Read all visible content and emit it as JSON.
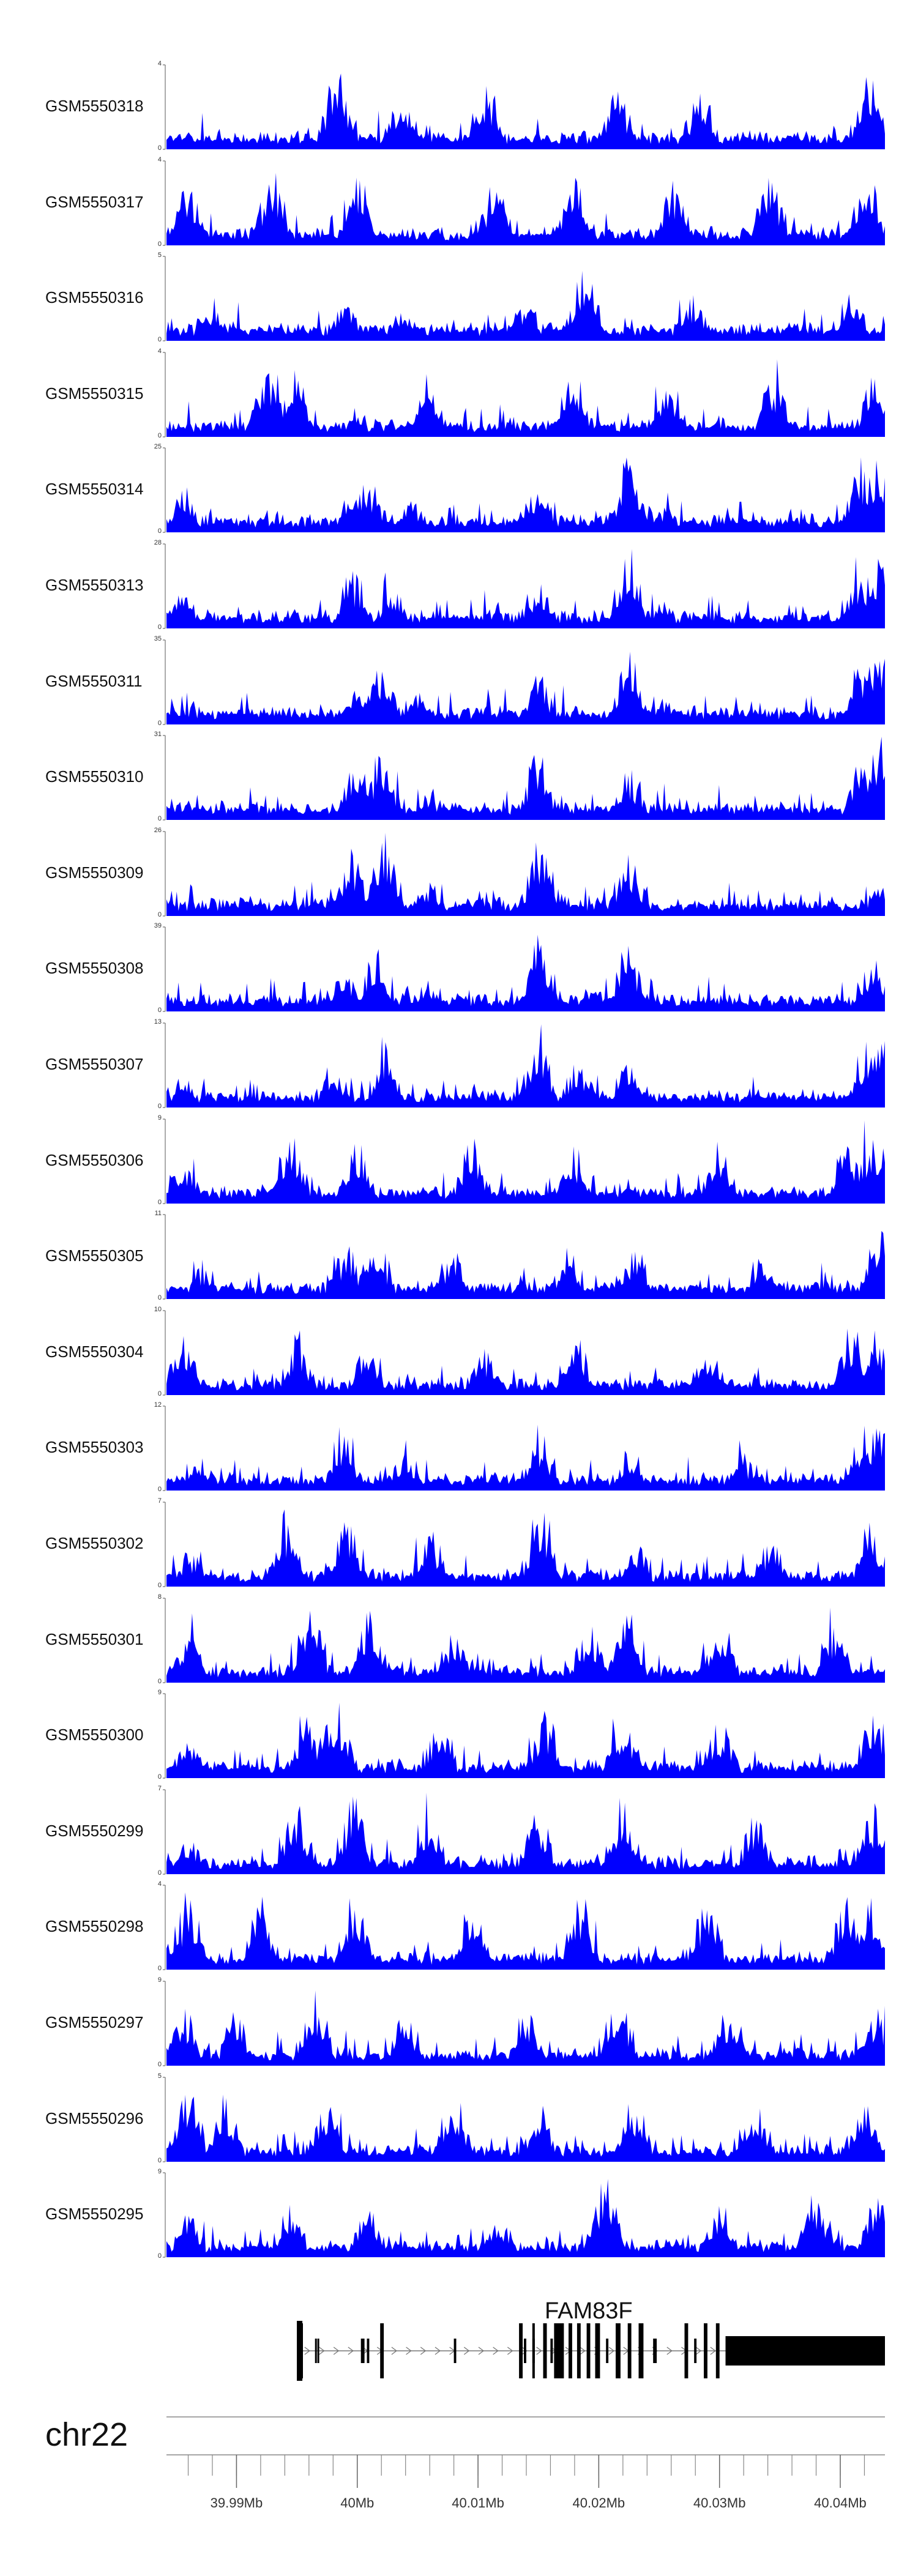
{
  "colors": {
    "signal": "#0000ff",
    "gene": "#000000",
    "axis": "#888888"
  },
  "chart_data": {
    "type": "area",
    "title": "",
    "xlabel": "",
    "x_range_mb": [
      39.9842,
      40.0437
    ],
    "tracks": [
      {
        "name": "GSM5550318",
        "ymin": "0",
        "ymax": "4",
        "peaks": [
          [
            39.9983,
            3.9
          ],
          [
            40.0038,
            2.6
          ],
          [
            40.0105,
            3.2
          ],
          [
            40.0215,
            3.0
          ],
          [
            40.0285,
            2.8
          ],
          [
            40.0425,
            3.4
          ]
        ]
      },
      {
        "name": "GSM5550317",
        "ymin": "0",
        "ymax": "4",
        "peaks": [
          [
            39.986,
            3.3
          ],
          [
            39.993,
            3.6
          ],
          [
            40.0,
            3.8
          ],
          [
            40.0115,
            3.4
          ],
          [
            40.018,
            3.5
          ],
          [
            40.0262,
            3.3
          ],
          [
            40.0342,
            3.4
          ],
          [
            40.0423,
            3.6
          ]
        ]
      },
      {
        "name": "GSM5550316",
        "ymin": "0",
        "ymax": "5",
        "peaks": [
          [
            39.988,
            2.2
          ],
          [
            39.999,
            2.6
          ],
          [
            40.004,
            2.3
          ],
          [
            40.014,
            2.5
          ],
          [
            40.0188,
            4.8
          ],
          [
            40.0278,
            2.6
          ],
          [
            40.041,
            2.8
          ]
        ]
      },
      {
        "name": "GSM5550315",
        "ymin": "0",
        "ymax": "4",
        "peaks": [
          [
            39.9925,
            3.9
          ],
          [
            39.9948,
            3.5
          ],
          [
            40.0058,
            3.4
          ],
          [
            40.0178,
            3.6
          ],
          [
            40.0258,
            3.0
          ],
          [
            40.0345,
            3.0
          ],
          [
            40.0428,
            3.3
          ]
        ]
      },
      {
        "name": "GSM5550314",
        "ymin": "0",
        "ymax": "25",
        "peaks": [
          [
            39.9855,
            12
          ],
          [
            39.9995,
            14
          ],
          [
            40.001,
            15
          ],
          [
            40.0045,
            10
          ],
          [
            40.015,
            13
          ],
          [
            40.0225,
            23
          ],
          [
            40.0252,
            8
          ],
          [
            40.0418,
            22
          ],
          [
            40.043,
            24
          ]
        ]
      },
      {
        "name": "GSM5550313",
        "ymin": "0",
        "ymax": "28",
        "peaks": [
          [
            39.9855,
            13
          ],
          [
            39.9995,
            20
          ],
          [
            40.003,
            15
          ],
          [
            40.015,
            16
          ],
          [
            40.0225,
            27
          ],
          [
            40.0252,
            10
          ],
          [
            40.0418,
            22
          ],
          [
            40.0433,
            24
          ]
        ]
      },
      {
        "name": "GSM5550311",
        "ymin": "0",
        "ymax": "35",
        "peaks": [
          [
            39.986,
            8
          ],
          [
            40.0,
            20
          ],
          [
            40.002,
            25
          ],
          [
            40.005,
            12
          ],
          [
            40.015,
            22
          ],
          [
            40.0225,
            30
          ],
          [
            40.0252,
            12
          ],
          [
            40.0418,
            28
          ],
          [
            40.0433,
            33
          ]
        ]
      },
      {
        "name": "GSM5550310",
        "ymin": "0",
        "ymax": "31",
        "peaks": [
          [
            39.986,
            8
          ],
          [
            40.0,
            22
          ],
          [
            40.002,
            27
          ],
          [
            40.006,
            10
          ],
          [
            40.015,
            26
          ],
          [
            40.0225,
            19
          ],
          [
            40.0418,
            22
          ],
          [
            40.0433,
            30
          ]
        ]
      },
      {
        "name": "GSM5550309",
        "ymin": "0",
        "ymax": "26",
        "peaks": [
          [
            39.986,
            4
          ],
          [
            39.9995,
            20
          ],
          [
            40.0023,
            25
          ],
          [
            40.006,
            10
          ],
          [
            40.0152,
            25
          ],
          [
            40.0168,
            8
          ],
          [
            40.0225,
            20
          ],
          [
            40.0433,
            11
          ]
        ]
      },
      {
        "name": "GSM5550308",
        "ymin": "0",
        "ymax": "39",
        "peaks": [
          [
            39.986,
            6
          ],
          [
            39.9988,
            20
          ],
          [
            40.0015,
            28
          ],
          [
            40.006,
            12
          ],
          [
            40.0152,
            38
          ],
          [
            40.0195,
            12
          ],
          [
            40.0225,
            33
          ],
          [
            40.0428,
            27
          ]
        ]
      },
      {
        "name": "GSM5550307",
        "ymin": "0",
        "ymax": "13",
        "peaks": [
          [
            39.986,
            3
          ],
          [
            39.998,
            7
          ],
          [
            40.0022,
            9
          ],
          [
            40.015,
            12
          ],
          [
            40.0185,
            6
          ],
          [
            40.0225,
            8
          ],
          [
            40.042,
            10
          ],
          [
            40.0433,
            12.5
          ]
        ]
      },
      {
        "name": "GSM5550306",
        "ymin": "0",
        "ymax": "9",
        "peaks": [
          [
            39.9855,
            5
          ],
          [
            39.9945,
            8
          ],
          [
            40.0,
            7
          ],
          [
            40.0095,
            7
          ],
          [
            40.018,
            6
          ],
          [
            40.03,
            7
          ],
          [
            40.0405,
            7.5
          ],
          [
            40.0425,
            8.5
          ]
        ]
      },
      {
        "name": "GSM5550305",
        "ymin": "0",
        "ymax": "11",
        "peaks": [
          [
            39.987,
            4
          ],
          [
            39.999,
            7
          ],
          [
            40.0015,
            9
          ],
          [
            40.008,
            6
          ],
          [
            40.0175,
            6
          ],
          [
            40.023,
            7
          ],
          [
            40.0335,
            6
          ],
          [
            40.0433,
            10.5
          ]
        ]
      },
      {
        "name": "GSM5550304",
        "ymin": "0",
        "ymax": "10",
        "peaks": [
          [
            39.9855,
            8
          ],
          [
            39.995,
            7
          ],
          [
            40.0008,
            7
          ],
          [
            40.0105,
            6
          ],
          [
            40.018,
            8
          ],
          [
            40.029,
            6
          ],
          [
            40.041,
            9
          ],
          [
            40.0428,
            8
          ]
        ]
      },
      {
        "name": "GSM5550303",
        "ymin": "0",
        "ymax": "12",
        "peaks": [
          [
            39.987,
            4
          ],
          [
            39.9988,
            8
          ],
          [
            40.004,
            5
          ],
          [
            40.015,
            9
          ],
          [
            40.0225,
            6
          ],
          [
            40.0318,
            5
          ],
          [
            40.042,
            9
          ],
          [
            40.0433,
            11.5
          ]
        ]
      },
      {
        "name": "GSM5550302",
        "ymin": "0",
        "ymax": "7",
        "peaks": [
          [
            39.986,
            3
          ],
          [
            39.994,
            6.5
          ],
          [
            39.999,
            6
          ],
          [
            40.006,
            5
          ],
          [
            40.0152,
            6.8
          ],
          [
            40.023,
            4
          ],
          [
            40.0342,
            4
          ],
          [
            40.0425,
            5.5
          ]
        ]
      },
      {
        "name": "GSM5550301",
        "ymin": "0",
        "ymax": "8",
        "peaks": [
          [
            39.986,
            5
          ],
          [
            39.996,
            7.5
          ],
          [
            40.001,
            7
          ],
          [
            40.008,
            5
          ],
          [
            40.0192,
            6
          ],
          [
            40.0223,
            7
          ],
          [
            40.03,
            5
          ],
          [
            40.0395,
            6
          ]
        ]
      },
      {
        "name": "GSM5550300",
        "ymin": "0",
        "ymax": "9",
        "peaks": [
          [
            39.986,
            4
          ],
          [
            39.996,
            7
          ],
          [
            39.9983,
            8.5
          ],
          [
            40.0068,
            6
          ],
          [
            40.0155,
            7
          ],
          [
            40.022,
            7
          ],
          [
            40.03,
            6
          ],
          [
            40.0428,
            8
          ]
        ]
      },
      {
        "name": "GSM5550299",
        "ymin": "0",
        "ymax": "7",
        "peaks": [
          [
            39.986,
            3
          ],
          [
            39.995,
            6
          ],
          [
            39.9998,
            6.5
          ],
          [
            40.006,
            5
          ],
          [
            40.015,
            5.5
          ],
          [
            40.022,
            6.8
          ],
          [
            40.033,
            5
          ],
          [
            40.0425,
            6
          ]
        ]
      },
      {
        "name": "GSM5550298",
        "ymin": "0",
        "ymax": "4",
        "peaks": [
          [
            39.986,
            3.3
          ],
          [
            39.992,
            3.4
          ],
          [
            40.0,
            3.7
          ],
          [
            40.0095,
            3.4
          ],
          [
            40.0185,
            3.5
          ],
          [
            40.029,
            3.5
          ],
          [
            40.0405,
            3.8
          ],
          [
            40.0428,
            3.5
          ]
        ]
      },
      {
        "name": "GSM5550297",
        "ymin": "0",
        "ymax": "9",
        "peaks": [
          [
            39.9855,
            7
          ],
          [
            39.99,
            6
          ],
          [
            39.9965,
            8
          ],
          [
            40.004,
            6
          ],
          [
            40.014,
            6
          ],
          [
            40.0215,
            8.5
          ],
          [
            40.0308,
            7
          ],
          [
            40.043,
            6
          ]
        ]
      },
      {
        "name": "GSM5550296",
        "ymin": "0",
        "ymax": "5",
        "peaks": [
          [
            39.986,
            4.6
          ],
          [
            39.989,
            4
          ],
          [
            39.9975,
            3.8
          ],
          [
            40.008,
            4.5
          ],
          [
            40.015,
            3.5
          ],
          [
            40.023,
            3.8
          ],
          [
            40.033,
            3.5
          ],
          [
            40.042,
            3.6
          ]
        ]
      },
      {
        "name": "GSM5550295",
        "ymin": "0",
        "ymax": "9",
        "peaks": [
          [
            39.986,
            5
          ],
          [
            39.9945,
            6
          ],
          [
            40.001,
            5
          ],
          [
            40.012,
            4
          ],
          [
            40.0205,
            8.5
          ],
          [
            40.03,
            6
          ],
          [
            40.038,
            6.5
          ],
          [
            40.043,
            7
          ]
        ]
      }
    ],
    "gene": {
      "name": "FAM83F",
      "strand": "+",
      "start_mb": 39.9951,
      "end_mb": 40.0437,
      "exons": [
        [
          39.9951,
          39.9955
        ],
        [
          39.9965,
          39.9966
        ],
        [
          39.9967,
          39.9968
        ],
        [
          40.0003,
          40.0006
        ],
        [
          40.0008,
          40.001
        ],
        [
          40.0019,
          40.0022
        ],
        [
          40.008,
          40.0082
        ],
        [
          40.0134,
          40.0137
        ],
        [
          40.0138,
          40.014
        ],
        [
          40.0145,
          40.0147
        ],
        [
          40.0154,
          40.0157
        ],
        [
          40.016,
          40.0162
        ],
        [
          40.0175,
          40.0178
        ],
        [
          40.0182,
          40.0185
        ],
        [
          40.019,
          40.0193
        ],
        [
          40.0197,
          40.0201
        ],
        [
          40.0206,
          40.0208
        ],
        [
          40.0214,
          40.0218
        ],
        [
          40.0224,
          40.0227
        ],
        [
          40.0233,
          40.0237
        ],
        [
          40.0245,
          40.0248
        ],
        [
          40.0271,
          40.0274
        ],
        [
          40.0279,
          40.0281
        ],
        [
          40.0287,
          40.029
        ],
        [
          40.0297,
          40.03
        ],
        [
          40.0305,
          40.0437
        ]
      ]
    },
    "chromosome": "chr22",
    "axis_ticks": [
      {
        "value": 39.99,
        "label": "39.99Mb"
      },
      {
        "value": 40.0,
        "label": "40Mb"
      },
      {
        "value": 40.01,
        "label": "40.01Mb"
      },
      {
        "value": 40.02,
        "label": "40.02Mb"
      },
      {
        "value": 40.03,
        "label": "40.03Mb"
      },
      {
        "value": 40.04,
        "label": "40.04Mb"
      }
    ]
  }
}
